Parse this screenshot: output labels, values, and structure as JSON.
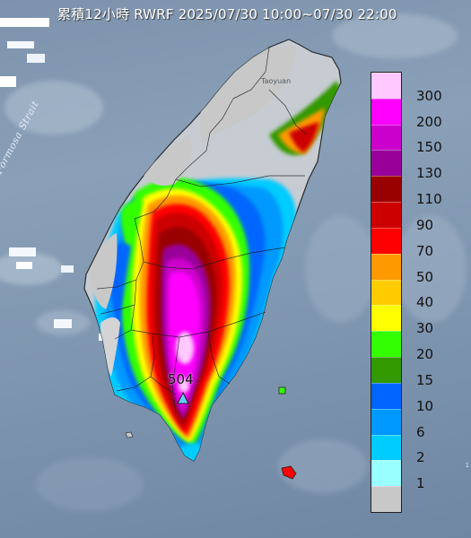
{
  "title": "累積12小時 RWRF 2025/07/30 10:00~07/30 22:00",
  "map": {
    "sea_label": "Formosa Strait",
    "city_label": "Taoyuan",
    "max_value_label": "504",
    "edge_label": "1"
  },
  "legend": {
    "levels": [
      "300",
      "200",
      "150",
      "130",
      "110",
      "90",
      "70",
      "50",
      "40",
      "30",
      "20",
      "15",
      "10",
      "6",
      "2",
      "1"
    ],
    "colors": [
      "#ffc8ff",
      "#ff00ff",
      "#cc00cc",
      "#990099",
      "#990000",
      "#cc0000",
      "#ff0000",
      "#ff9900",
      "#ffcc00",
      "#ffff00",
      "#33ff00",
      "#339900",
      "#0066ff",
      "#0099ff",
      "#00ccff",
      "#99ffff",
      "#c8c8c8"
    ]
  }
}
